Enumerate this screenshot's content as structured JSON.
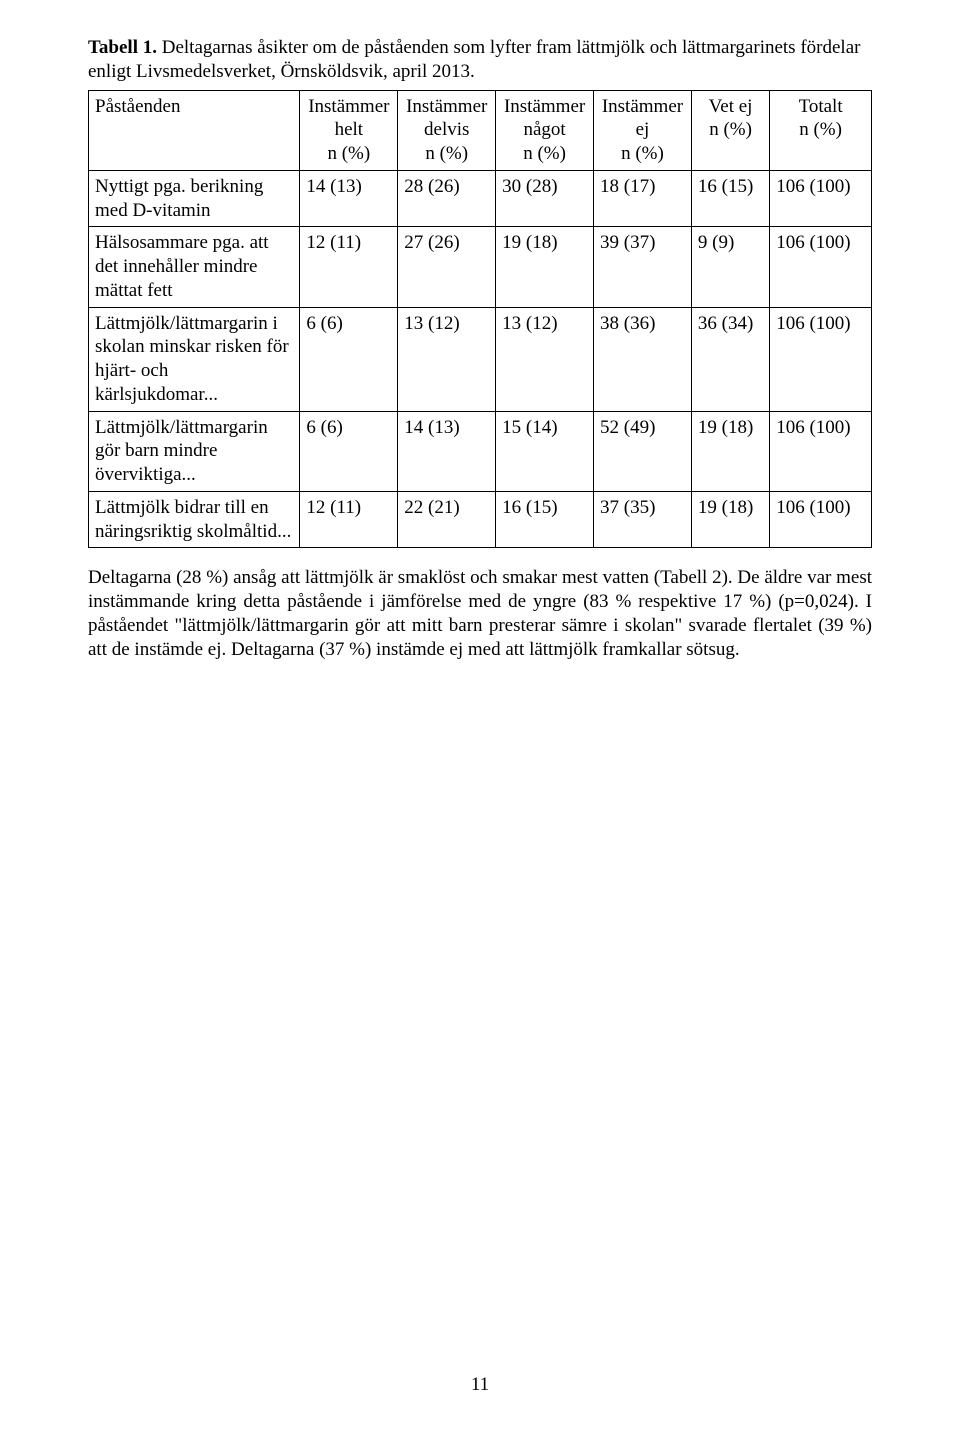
{
  "caption_prefix": "Tabell 1.",
  "caption_rest": " Deltagarnas åsikter om de påståenden som lyfter fram lättmjölk och lättmargarinets fördelar enligt Livsmedelsverket, Örnsköldsvik, april 2013.",
  "table": {
    "header_row_label": "Påståenden",
    "columns": [
      {
        "line1": "Instämmer",
        "line2": "helt",
        "line3": "n (%)"
      },
      {
        "line1": "Instämmer",
        "line2": "delvis",
        "line3": "n (%)"
      },
      {
        "line1": "Instämmer",
        "line2": "något",
        "line3": "n (%)"
      },
      {
        "line1": "Instämmer",
        "line2": "ej",
        "line3": "",
        "line4": "n (%)"
      },
      {
        "line1": "Vet ej",
        "line2": "",
        "line3": "n (%)"
      },
      {
        "line1": "Totalt",
        "line2": "",
        "line3": "n (%)"
      }
    ],
    "rows": [
      {
        "label": "Nyttigt pga. berikning med D-vitamin",
        "cells": [
          "14 (13)",
          "28 (26)",
          "30 (28)",
          "18 (17)",
          "16 (15)",
          "106 (100)"
        ]
      },
      {
        "label": "Hälsosammare pga. att det innehåller mindre mättat fett",
        "cells": [
          "12 (11)",
          "27 (26)",
          "19 (18)",
          "39 (37)",
          "9 (9)",
          "106 (100)"
        ]
      },
      {
        "label": "Lättmjölk/lättmargarin i skolan minskar risken för hjärt- och kärlsjukdomar...",
        "cells": [
          "6 (6)",
          "13 (12)",
          "13 (12)",
          "38 (36)",
          "36 (34)",
          "106 (100)"
        ]
      },
      {
        "label": "Lättmjölk/lättmargarin gör barn mindre överviktiga...",
        "cells": [
          "6 (6)",
          "14 (13)",
          "15 (14)",
          "52 (49)",
          "19 (18)",
          "106 (100)"
        ]
      },
      {
        "label": "Lättmjölk bidrar till en näringsriktig skolmåltid...",
        "cells": [
          "12 (11)",
          "22 (21)",
          "16 (15)",
          "37 (35)",
          "19 (18)",
          "106 (100)"
        ]
      }
    ]
  },
  "paragraph": "Deltagarna (28 %) ansåg att lättmjölk är smaklöst och smakar mest vatten (Tabell 2). De äldre var mest instämmande kring detta påstående i jämförelse med de yngre (83 % respektive 17 %) (p=0,024). I påståendet \"lättmjölk/lättmargarin gör att mitt barn presterar sämre i skolan\" svarade flertalet (39 %) att de instämde ej. Deltagarna (37 %) instämde ej med att lättmjölk framkallar sötsug.",
  "page_number": "11"
}
